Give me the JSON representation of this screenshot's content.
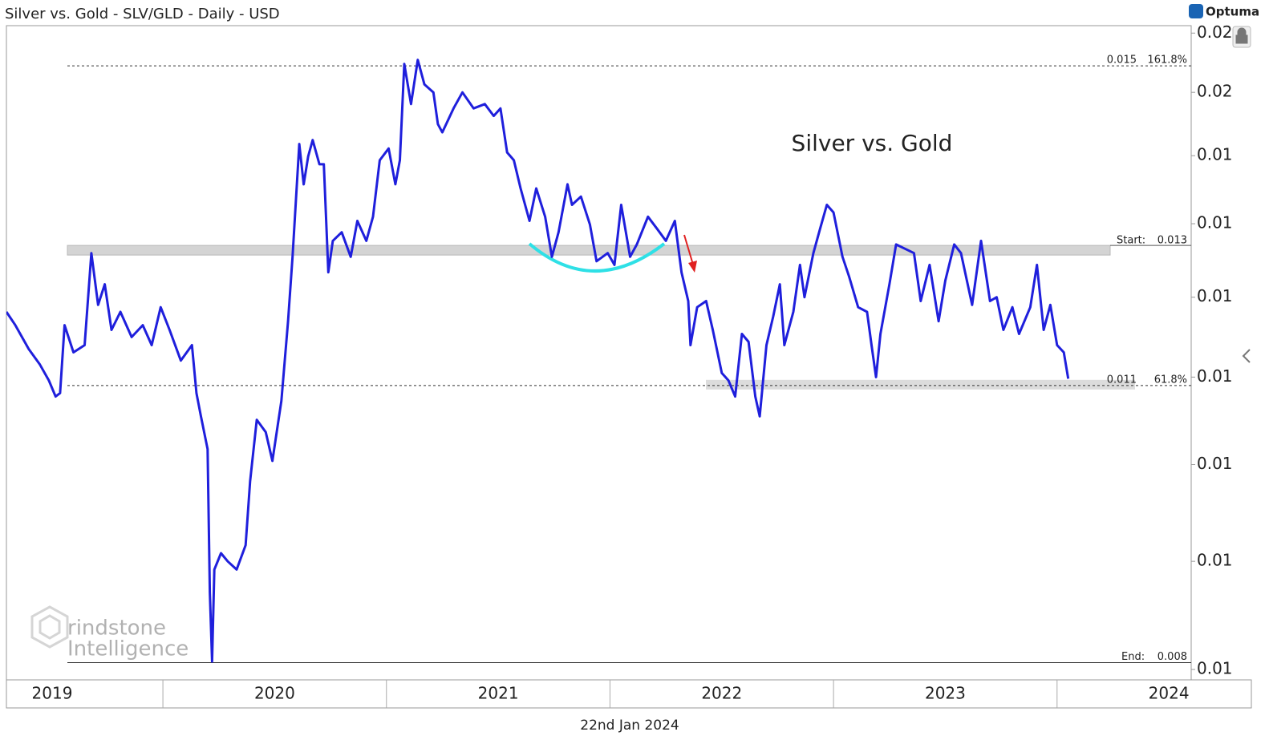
{
  "chart_data": {
    "type": "line",
    "title": "Silver vs. Gold - SLV/GLD - Daily - USD",
    "brand": "Optuma",
    "date_label": "22nd Jan 2024",
    "watermark": [
      "rindstone",
      "Intelligence"
    ],
    "log_scale": true,
    "xlim": [
      2019.3,
      2024.6
    ],
    "xticks": [
      {
        "value": 2019,
        "label": "2019"
      },
      {
        "value": 2020,
        "label": "2020"
      },
      {
        "value": 2021,
        "label": "2021"
      },
      {
        "value": 2022,
        "label": "2022"
      },
      {
        "value": 2023,
        "label": "2023"
      },
      {
        "value": 2024,
        "label": "2024"
      }
    ],
    "ylim": [
      0.00791,
      0.01613
    ],
    "yticks": [
      {
        "value": 0.008,
        "label": "0.01"
      },
      {
        "value": 0.009,
        "label": "0.01"
      },
      {
        "value": 0.01,
        "label": "0.01"
      },
      {
        "value": 0.011,
        "label": "0.01"
      },
      {
        "value": 0.012,
        "label": "0.01"
      },
      {
        "value": 0.013,
        "label": "0.01"
      },
      {
        "value": 0.014,
        "label": "0.01"
      },
      {
        "value": 0.015,
        "label": "0.02"
      },
      {
        "value": 0.016,
        "label": "0.02"
      }
    ],
    "levels": [
      {
        "name": "161.8%",
        "value": 0.01544,
        "value_label": "0.015",
        "style": "dashed"
      },
      {
        "name": "Start:",
        "value": 0.01263,
        "value_label": "0.013",
        "style": "band"
      },
      {
        "name": "61.8%",
        "value": 0.0109,
        "value_label": "0.011",
        "style": "dashed-band"
      },
      {
        "name": "End:",
        "value": 0.00806,
        "value_label": "0.008",
        "style": "solid"
      }
    ],
    "x": [
      2019.3,
      2019.34,
      2019.4,
      2019.45,
      2019.49,
      2019.52,
      2019.54,
      2019.56,
      2019.6,
      2019.65,
      2019.68,
      2019.71,
      2019.74,
      2019.77,
      2019.81,
      2019.86,
      2019.91,
      2019.95,
      2019.99,
      2020.03,
      2020.08,
      2020.13,
      2020.15,
      2020.17,
      2020.2,
      2020.21,
      2020.22,
      2020.23,
      2020.26,
      2020.29,
      2020.33,
      2020.37,
      2020.39,
      2020.42,
      2020.46,
      2020.49,
      2020.53,
      2020.56,
      2020.58,
      2020.61,
      2020.63,
      2020.65,
      2020.67,
      2020.7,
      2020.72,
      2020.74,
      2020.76,
      2020.8,
      2020.84,
      2020.87,
      2020.91,
      2020.94,
      2020.97,
      2021.01,
      2021.04,
      2021.06,
      2021.08,
      2021.11,
      2021.14,
      2021.17,
      2021.21,
      2021.23,
      2021.25,
      2021.3,
      2021.34,
      2021.39,
      2021.44,
      2021.48,
      2021.51,
      2021.54,
      2021.57,
      2021.6,
      2021.64,
      2021.67,
      2021.71,
      2021.74,
      2021.77,
      2021.81,
      2021.83,
      2021.87,
      2021.91,
      2021.94,
      2021.99,
      2022.02,
      2022.05,
      2022.09,
      2022.12,
      2022.17,
      2022.21,
      2022.25,
      2022.29,
      2022.32,
      2022.35,
      2022.36,
      2022.39,
      2022.43,
      2022.46,
      2022.5,
      2022.53,
      2022.56,
      2022.59,
      2022.62,
      2022.65,
      2022.67,
      2022.7,
      2022.73,
      2022.76,
      2022.78,
      2022.82,
      2022.85,
      2022.87,
      2022.91,
      2022.94,
      2022.97,
      2023.0,
      2023.04,
      2023.07,
      2023.11,
      2023.15,
      2023.17,
      2023.19,
      2023.21,
      2023.25,
      2023.28,
      2023.32,
      2023.36,
      2023.39,
      2023.43,
      2023.47,
      2023.5,
      2023.54,
      2023.57,
      2023.62,
      2023.66,
      2023.7,
      2023.73,
      2023.76,
      2023.8,
      2023.83,
      2023.88,
      2023.91,
      2023.94,
      2023.97,
      2024.0,
      2024.03,
      2024.05
    ],
    "series": [
      {
        "name": "Silver vs. Gold",
        "color": "#1f1fdc",
        "values": [
          0.01181,
          0.01164,
          0.01134,
          0.01115,
          0.01096,
          0.01077,
          0.01081,
          0.01164,
          0.0113,
          0.01139,
          0.01259,
          0.0119,
          0.01217,
          0.01158,
          0.01181,
          0.01149,
          0.01164,
          0.01139,
          0.01187,
          0.01158,
          0.0112,
          0.01139,
          0.01081,
          0.01054,
          0.01017,
          0.0087,
          0.00807,
          0.00892,
          0.00908,
          0.009,
          0.00892,
          0.00916,
          0.00982,
          0.0105,
          0.01036,
          0.01004,
          0.01072,
          0.01169,
          0.01254,
          0.01418,
          0.01357,
          0.01399,
          0.01424,
          0.01387,
          0.01387,
          0.01233,
          0.01276,
          0.01288,
          0.01254,
          0.01304,
          0.01276,
          0.0131,
          0.01393,
          0.01411,
          0.01357,
          0.01393,
          0.01547,
          0.01481,
          0.01554,
          0.01513,
          0.015,
          0.01449,
          0.01436,
          0.01474,
          0.015,
          0.01474,
          0.01481,
          0.01462,
          0.01474,
          0.01405,
          0.01393,
          0.01351,
          0.01304,
          0.01351,
          0.0131,
          0.01254,
          0.01288,
          0.01357,
          0.01327,
          0.01339,
          0.01299,
          0.01248,
          0.01259,
          0.01243,
          0.01327,
          0.01254,
          0.01271,
          0.0131,
          0.01293,
          0.01276,
          0.01304,
          0.01233,
          0.01195,
          0.01139,
          0.01187,
          0.01195,
          0.01158,
          0.01105,
          0.01096,
          0.01077,
          0.01153,
          0.01143,
          0.01077,
          0.01054,
          0.01139,
          0.01175,
          0.01217,
          0.01139,
          0.01181,
          0.01243,
          0.012,
          0.01259,
          0.01293,
          0.01327,
          0.01316,
          0.01254,
          0.01227,
          0.01187,
          0.01181,
          0.01139,
          0.011,
          0.01153,
          0.01217,
          0.01271,
          0.01265,
          0.01259,
          0.01195,
          0.01243,
          0.01169,
          0.01222,
          0.01271,
          0.01259,
          0.0119,
          0.01276,
          0.01195,
          0.012,
          0.01158,
          0.01187,
          0.01153,
          0.01187,
          0.01243,
          0.01158,
          0.0119,
          0.01139,
          0.0113,
          0.01098
        ]
      }
    ]
  }
}
